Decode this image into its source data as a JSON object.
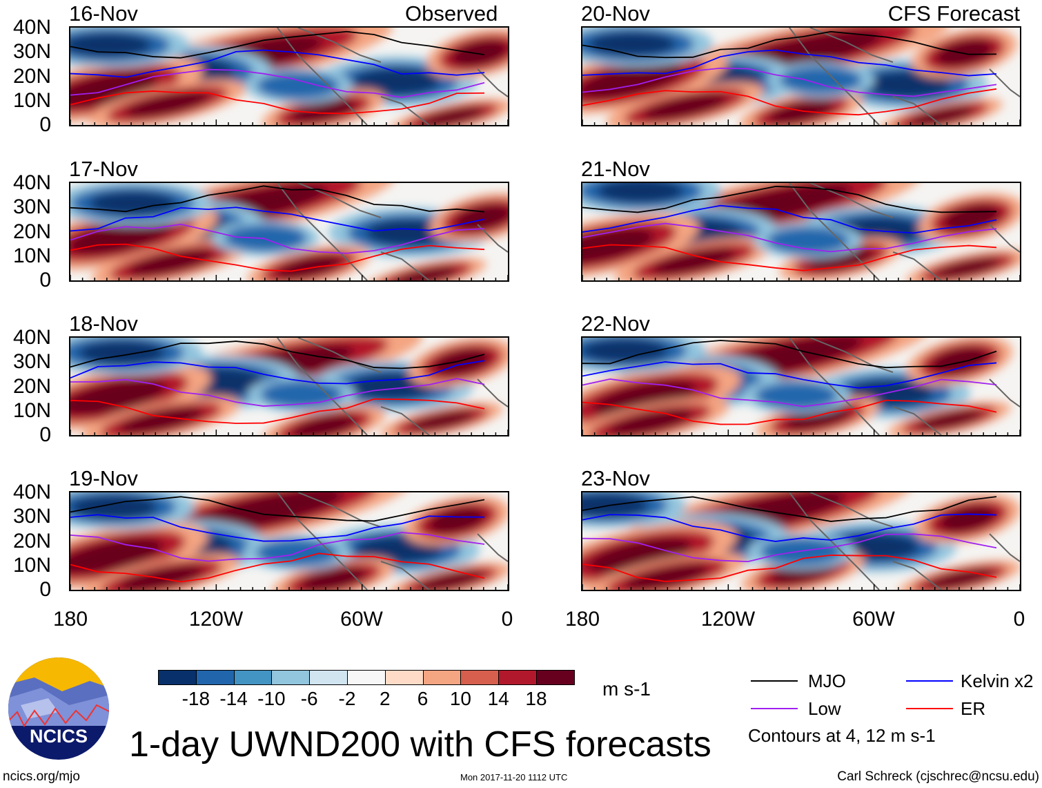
{
  "left_column": {
    "label": "Observed",
    "panels": [
      "16-Nov",
      "17-Nov",
      "18-Nov",
      "19-Nov"
    ]
  },
  "right_column": {
    "label": "CFS Forecast",
    "panels": [
      "20-Nov",
      "21-Nov",
      "22-Nov",
      "23-Nov"
    ]
  },
  "y_axis_labels": [
    "40N",
    "30N",
    "20N",
    "10N",
    "0"
  ],
  "x_axis_labels": [
    "180",
    "120W",
    "60W",
    "0"
  ],
  "colorbar": {
    "colors": [
      "#08306b",
      "#2166ac",
      "#4393c3",
      "#92c5de",
      "#d1e5f0",
      "#f7f7f7",
      "#fddbc7",
      "#f4a582",
      "#d6604d",
      "#b2182b",
      "#67001f"
    ],
    "tick_labels": [
      "-18",
      "-14",
      "-10",
      "-6",
      "-2",
      "2",
      "6",
      "10",
      "14",
      "18"
    ],
    "units": "m s-1"
  },
  "legend": {
    "items": [
      {
        "label": "MJO",
        "color": "#000000"
      },
      {
        "label": "Kelvin x2",
        "color": "#0000ff"
      },
      {
        "label": "Low",
        "color": "#a020f0"
      },
      {
        "label": "ER",
        "color": "#ff0000"
      }
    ],
    "note": "Contours at 4, 12 m s-1"
  },
  "title": "1-day UWND200 with CFS forecasts",
  "logo_text": "NCICS",
  "footer": {
    "left": "ncics.org/mjo",
    "center": "Mon 2017-11-20 1112 UTC",
    "right": "Carl Schreck (cjschrec@ncsu.edu)"
  }
}
